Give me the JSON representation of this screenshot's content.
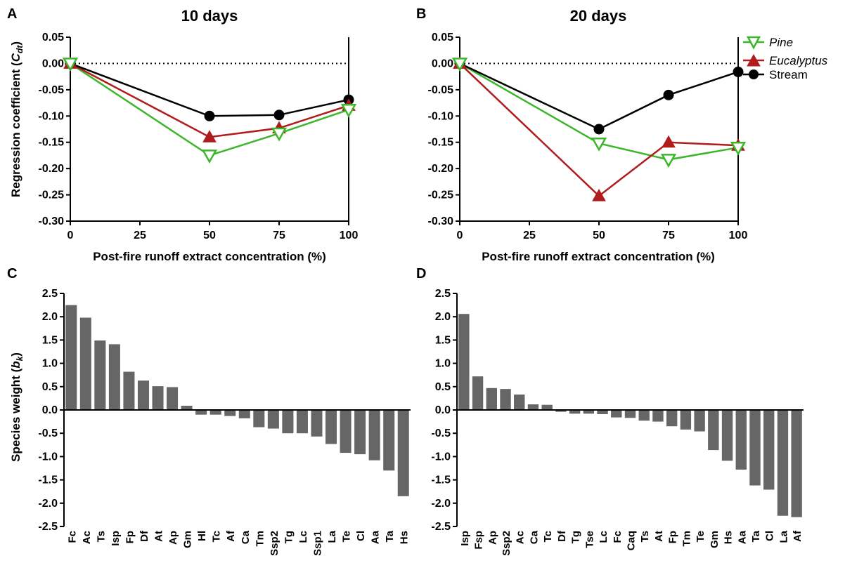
{
  "chart_data": [
    {
      "panel": "A",
      "type": "line",
      "title": "10 days",
      "xlabel": "Post-fire runoff extract concentration (%)",
      "ylabel_prefix": "Regression coefficient (",
      "ylabel_symbol": "C",
      "ylabel_subscript": "dt",
      "ylabel_suffix": ")",
      "x_ticks": [
        0,
        25,
        50,
        75,
        100
      ],
      "y_ticks": [
        "0.05",
        "0.00",
        "-0.05",
        "-0.10",
        "-0.15",
        "-0.20",
        "-0.25",
        "-0.30"
      ],
      "xlim": [
        0,
        100
      ],
      "ylim": [
        -0.3,
        0.05
      ],
      "reference_line_y": 0,
      "series": [
        {
          "name": "Pine",
          "color": "#3cb62a",
          "marker": "triangle-down-open",
          "x": [
            0,
            50,
            75,
            100
          ],
          "y": [
            0.0,
            -0.175,
            -0.133,
            -0.088
          ]
        },
        {
          "name": "Eucalyptus",
          "color": "#b01c1c",
          "marker": "triangle-up-filled",
          "x": [
            0,
            50,
            75,
            100
          ],
          "y": [
            0.0,
            -0.14,
            -0.123,
            -0.08
          ]
        },
        {
          "name": "Stream",
          "color": "#000000",
          "marker": "circle-filled",
          "x": [
            0,
            50,
            75,
            100
          ],
          "y": [
            0.0,
            -0.1,
            -0.098,
            -0.069
          ]
        }
      ]
    },
    {
      "panel": "B",
      "type": "line",
      "title": "20 days",
      "xlabel": "Post-fire runoff extract concentration (%)",
      "x_ticks": [
        0,
        25,
        50,
        75,
        100
      ],
      "y_ticks": [
        "0.05",
        "0.00",
        "-0.05",
        "-0.10",
        "-0.15",
        "-0.20",
        "-0.25",
        "-0.30"
      ],
      "xlim": [
        0,
        100
      ],
      "ylim": [
        -0.3,
        0.05
      ],
      "reference_line_y": 0,
      "legend_position": "top-right",
      "series": [
        {
          "name": "Pine",
          "color": "#3cb62a",
          "marker": "triangle-down-open",
          "x": [
            0,
            50,
            75,
            100
          ],
          "y": [
            0.0,
            -0.152,
            -0.183,
            -0.16
          ]
        },
        {
          "name": "Eucalyptus",
          "color": "#b01c1c",
          "marker": "triangle-up-filled",
          "x": [
            0,
            50,
            75,
            100
          ],
          "y": [
            0.0,
            -0.252,
            -0.15,
            -0.156
          ]
        },
        {
          "name": "Stream",
          "color": "#000000",
          "marker": "circle-filled",
          "x": [
            0,
            50,
            75,
            100
          ],
          "y": [
            0.0,
            -0.125,
            -0.06,
            -0.016
          ]
        }
      ]
    },
    {
      "panel": "C",
      "type": "bar",
      "ylabel_prefix": "Species weight (",
      "ylabel_symbol": "b",
      "ylabel_subscript": "k",
      "ylabel_suffix": ")",
      "y_ticks": [
        "2.5",
        "2.0",
        "1.5",
        "1.0",
        "0.5",
        "0.0",
        "-0.5",
        "-1.0",
        "-1.5",
        "-2.0",
        "-2.5"
      ],
      "ylim": [
        -2.5,
        2.5
      ],
      "bar_color": "#666666",
      "categories": [
        "Fc",
        "Ac",
        "Ts",
        "Isp",
        "Fp",
        "Df",
        "At",
        "Ap",
        "Gm",
        "Hl",
        "Tc",
        "Af",
        "Ca",
        "Tm",
        "Ssp2",
        "Tg",
        "Lc",
        "Ssp1",
        "La",
        "Te",
        "Cl",
        "Aa",
        "Ta",
        "Hs"
      ],
      "values": [
        2.25,
        1.98,
        1.49,
        1.41,
        0.82,
        0.63,
        0.51,
        0.49,
        0.09,
        -0.1,
        -0.1,
        -0.13,
        -0.18,
        -0.37,
        -0.4,
        -0.5,
        -0.5,
        -0.57,
        -0.73,
        -0.92,
        -0.95,
        -1.08,
        -1.3,
        -1.85
      ]
    },
    {
      "panel": "D",
      "type": "bar",
      "y_ticks": [
        "2.5",
        "2.0",
        "1.5",
        "1.0",
        "0.5",
        "0.0",
        "-0.5",
        "-1.0",
        "-1.5",
        "-2.0",
        "-2.5"
      ],
      "ylim": [
        -2.5,
        2.5
      ],
      "bar_color": "#666666",
      "categories": [
        "Isp",
        "Fsp",
        "Ap",
        "Ssp2",
        "Ac",
        "Ca",
        "Tc",
        "Df",
        "Tg",
        "Tse",
        "Lc",
        "Fc",
        "Caq",
        "Ts",
        "At",
        "Fp",
        "Tm",
        "Te",
        "Gm",
        "Hs",
        "Aa",
        "Ta",
        "Cl",
        "La",
        "Af"
      ],
      "values": [
        2.06,
        0.72,
        0.47,
        0.45,
        0.33,
        0.12,
        0.11,
        -0.04,
        -0.08,
        -0.08,
        -0.09,
        -0.16,
        -0.17,
        -0.23,
        -0.25,
        -0.35,
        -0.42,
        -0.46,
        -0.86,
        -1.09,
        -1.28,
        -1.62,
        -1.71,
        -2.27,
        -2.3
      ]
    }
  ]
}
